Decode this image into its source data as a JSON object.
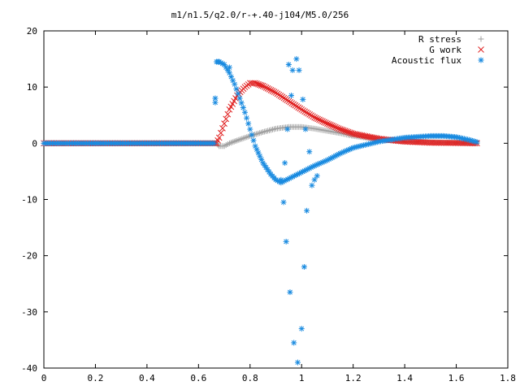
{
  "chart_data": {
    "type": "scatter",
    "title": "m1/n1.5/q2.0/r-+.40-j104/M5.0/256",
    "xlabel": "",
    "ylabel": "",
    "xlim": [
      0,
      1.8
    ],
    "ylim": [
      -40,
      20
    ],
    "xticks": [
      0,
      0.2,
      0.4,
      0.6,
      0.8,
      1,
      1.2,
      1.4,
      1.6,
      1.8
    ],
    "xtick_labels": [
      "0",
      "0.2",
      "0.4",
      "0.6",
      "0.8",
      "1",
      "1.2",
      "1.4",
      "1.6",
      "1.8"
    ],
    "yticks": [
      -40,
      -30,
      -20,
      -10,
      0,
      10,
      20
    ],
    "ytick_labels": [
      "-40",
      "-30",
      "-20",
      "-10",
      "0",
      "10",
      "20"
    ],
    "grid": false,
    "legend_position": "top-right",
    "series": [
      {
        "name": "R stress",
        "marker": "plus",
        "color": "#a0a0a0",
        "x": [
          0,
          0.67,
          0.68,
          0.7,
          0.72,
          0.75,
          0.8,
          0.85,
          0.9,
          0.95,
          1.0,
          1.05,
          1.1,
          1.15,
          1.2,
          1.3,
          1.4,
          1.5,
          1.6,
          1.68
        ],
        "y": [
          0,
          0,
          -0.5,
          -0.5,
          0,
          0.5,
          1.3,
          2.0,
          2.6,
          2.9,
          2.9,
          2.6,
          2.2,
          1.8,
          1.3,
          0.7,
          0.35,
          0.2,
          0.1,
          0
        ]
      },
      {
        "name": "G work",
        "marker": "x",
        "color": "#e02020",
        "x": [
          0,
          0.67,
          0.68,
          0.7,
          0.72,
          0.75,
          0.78,
          0.8,
          0.82,
          0.85,
          0.9,
          0.95,
          1.0,
          1.05,
          1.1,
          1.15,
          1.2,
          1.3,
          1.4,
          1.5,
          1.6,
          1.68
        ],
        "y": [
          0,
          0,
          1.0,
          3.5,
          6.0,
          8.5,
          10.0,
          10.7,
          10.7,
          10.2,
          9.0,
          7.5,
          6.0,
          4.6,
          3.5,
          2.5,
          1.7,
          0.8,
          0.3,
          0.1,
          0.05,
          0
        ]
      },
      {
        "name": "Acoustic flux",
        "marker": "star",
        "color": "#1a8be0",
        "x": [
          0,
          0.66,
          0.67,
          0.68,
          0.7,
          0.72,
          0.74,
          0.76,
          0.78,
          0.8,
          0.82,
          0.85,
          0.88,
          0.9,
          0.92,
          1.05,
          1.1,
          1.15,
          1.2,
          1.3,
          1.4,
          1.5,
          1.55,
          1.6,
          1.65,
          1.68
        ],
        "y": [
          0,
          0,
          14.5,
          14.5,
          14.0,
          12.5,
          10.5,
          8.0,
          5.5,
          2.5,
          -0.5,
          -3.5,
          -5.5,
          -6.5,
          -7.0,
          -4.0,
          -3.0,
          -1.8,
          -0.8,
          0.3,
          1.0,
          1.3,
          1.3,
          1.1,
          0.6,
          0.2
        ]
      },
      {
        "name": "",
        "marker": "star",
        "color": "#1a8be0",
        "x": [
          0.665,
          0.68,
          0.72,
          0.92,
          0.93,
          0.935,
          0.94,
          0.945,
          0.95,
          0.955,
          0.96,
          0.965,
          0.97,
          0.98,
          0.985,
          0.99,
          1.0,
          1.005,
          1.01,
          1.015,
          1.02,
          1.03,
          1.04,
          1.05,
          1.06
        ],
        "y": [
          8.0,
          14.5,
          13.5,
          -6.5,
          -10.5,
          -3.5,
          -17.5,
          2.5,
          14.0,
          -26.5,
          8.5,
          13.0,
          -35.5,
          15.0,
          -39.0,
          13.0,
          -33.0,
          7.8,
          -22.0,
          2.5,
          -12.0,
          -1.5,
          -7.5,
          -6.5,
          -5.8
        ]
      }
    ]
  }
}
